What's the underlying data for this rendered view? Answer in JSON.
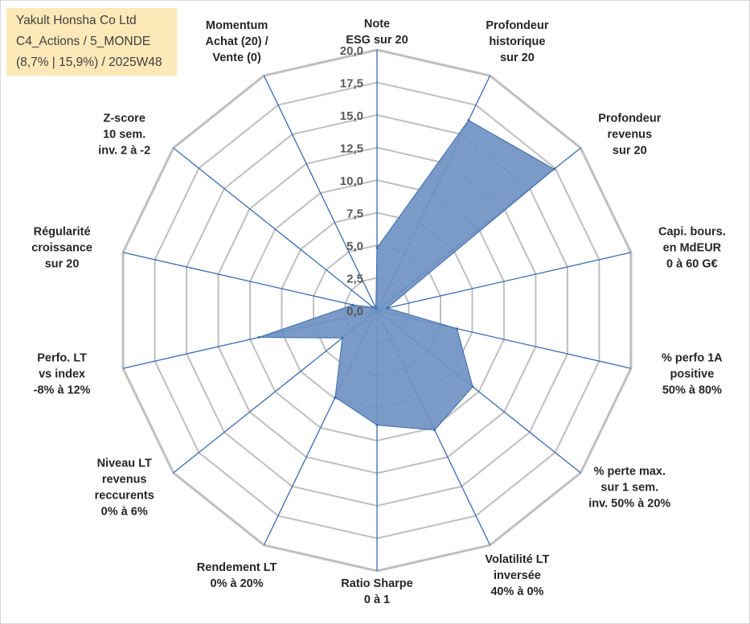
{
  "title_box": {
    "line1": "Yakult Honsha Co Ltd",
    "line2": "C4_Actions / 5_MONDE",
    "line3": "(8,7% | 15,9%) / 2025W48",
    "background": "#fde9b8"
  },
  "chart_data": {
    "type": "radar",
    "rlim": [
      0,
      20
    ],
    "ticks": [
      "0,0",
      "2,5",
      "5,0",
      "7,5",
      "10,0",
      "12,5",
      "15,0",
      "17,5",
      "20,0"
    ],
    "tick_values": [
      0,
      2.5,
      5,
      7.5,
      10,
      12.5,
      15,
      17.5,
      20
    ],
    "grid": true,
    "fill_color": "#6f93c2",
    "grid_color": "#bfbfbf",
    "spoke_color": "#3a6cb0",
    "axes": [
      [
        "Note",
        "ESG sur 20"
      ],
      [
        "Profondeur",
        "historique",
        "sur 20"
      ],
      [
        "Profondeur",
        "revenus",
        "sur 20"
      ],
      [
        "Capi. bours.",
        "en MdEUR",
        "0 à 60 G€"
      ],
      [
        "% perfo 1A",
        "positive",
        "50% à 80%"
      ],
      [
        "% perte max.",
        "sur 1 sem.",
        "inv. 50% à 20%"
      ],
      [
        "Volatilité LT",
        "inversée",
        "40% à 0%"
      ],
      [
        "Ratio Sharpe",
        "0 à 1"
      ],
      [
        "Rendement LT",
        "0% à 20%"
      ],
      [
        "Niveau LT",
        "revenus",
        "reccurents",
        "0% à 6%"
      ],
      [
        "Perfo. LT",
        "vs index",
        "-8% à 12%"
      ],
      [
        "Régularité",
        "croissance",
        "sur 20"
      ],
      [
        "Z-score",
        "10 sem.",
        "inv. 2 à -2"
      ],
      [
        "Momentum",
        "Achat (20) /",
        "Vente (0)"
      ]
    ],
    "series": [
      {
        "values": [
          4.8,
          16.2,
          17.4,
          0.8,
          6.3,
          9.4,
          10.2,
          8.8,
          7.4,
          3.4,
          9.3,
          1.9,
          0.4,
          0.2
        ]
      }
    ]
  }
}
